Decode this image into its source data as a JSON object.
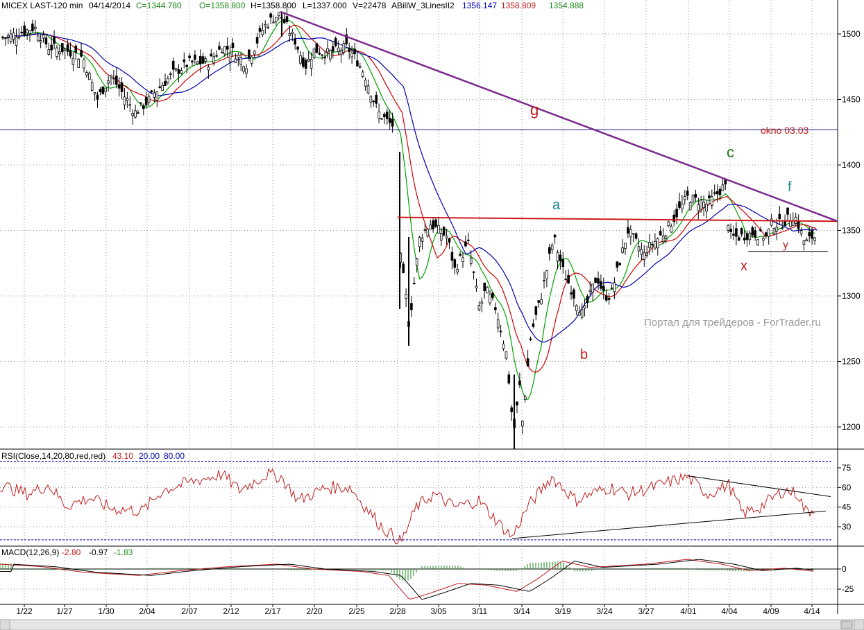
{
  "header": {
    "symbol": "MICEX LAST-120 min",
    "date": "04/14/2014",
    "close": "C=1344.780",
    "open": "O=1358.800",
    "high": "H=1358.800",
    "low": "L=1337.000",
    "volume": "V=22478",
    "indicator_name": "ABillW_3LinesII2",
    "line1_value": "1356.147",
    "line2_value": "1358.809",
    "line3_value": "1354.888"
  },
  "rsi_panel": {
    "title": "RSI(Close,14,20,80,red,red)",
    "value": "43.10",
    "low_level": "20.00",
    "high_level": "80.00"
  },
  "macd_panel": {
    "title": "MACD(12,26,9)",
    "macd": "-2.80",
    "signal": "-0.97",
    "hist": "-1.83"
  },
  "annotations": {
    "wave_g": "g",
    "wave_c": "c",
    "wave_a": "a",
    "wave_b": "b",
    "wave_f": "f",
    "wave_x": "x",
    "wave_y": "y",
    "window_label": "okno 03.03",
    "watermark": "Портал для трейдеров - ForTrader.ru"
  },
  "colors": {
    "candles": "#000000",
    "fast_ma": "#00a000",
    "mid_ma": "#d00000",
    "slow_ma": "#0000b0",
    "trendline": "#7b2a8c",
    "horizontal_red": "#cc1a1a",
    "window_line": "#2a2aa0",
    "rsi_line": "#c02020",
    "annotation_red": "#c01a1a",
    "annotation_green": "#1a7a1a",
    "annotation_teal": "#1a8a8a"
  },
  "chart_data": [
    {
      "type": "candlestick",
      "title": "MICEX LAST-120 min",
      "x_tick_labels": [
        "1/22",
        "1/27",
        "1/30",
        "2/04",
        "2/07",
        "2/12",
        "2/17",
        "2/20",
        "2/25",
        "2/28",
        "3/05",
        "3/11",
        "3/14",
        "3/19",
        "3/24",
        "3/27",
        "4/01",
        "4/04",
        "4/09",
        "4/14"
      ],
      "y_tick_labels": [
        "1500",
        "1450",
        "1400",
        "1350",
        "1300",
        "1250",
        "1200"
      ],
      "ylim": [
        1175,
        1530
      ],
      "grid": true,
      "close_path": [
        {
          "x": "1/22",
          "y": 1502
        },
        {
          "x": "1/27",
          "y": 1488
        },
        {
          "x": "1/30",
          "y": 1462
        },
        {
          "x": "2/04",
          "y": 1448
        },
        {
          "x": "2/07",
          "y": 1478
        },
        {
          "x": "2/12",
          "y": 1488
        },
        {
          "x": "2/17",
          "y": 1512
        },
        {
          "x": "2/20",
          "y": 1488
        },
        {
          "x": "2/25",
          "y": 1480
        },
        {
          "x": "2/28",
          "y": 1435
        },
        {
          "x": "3/05",
          "y": 1350
        },
        {
          "x": "3/11",
          "y": 1290
        },
        {
          "x": "3/14",
          "y": 1200
        },
        {
          "x": "3/19",
          "y": 1320
        },
        {
          "x": "3/24",
          "y": 1300
        },
        {
          "x": "3/27",
          "y": 1335
        },
        {
          "x": "4/01",
          "y": 1375
        },
        {
          "x": "4/04",
          "y": 1345
        },
        {
          "x": "4/09",
          "y": 1355
        },
        {
          "x": "4/14",
          "y": 1345
        }
      ],
      "extremes": {
        "high": 1517,
        "low": 1183
      },
      "levels": {
        "horizontal_red": 1360,
        "window_line": 1427,
        "y_wave_support": 1334
      }
    },
    {
      "type": "line",
      "title": "RSI(Close,14,20,80,red,red)",
      "y_tick_labels": [
        "75",
        "60",
        "45",
        "30"
      ],
      "ylim": [
        15,
        85
      ],
      "levels": [
        20,
        80
      ],
      "current": 43.1
    },
    {
      "type": "line",
      "title": "MACD(12,26,9)",
      "y_tick_labels": [
        "0",
        "-25"
      ],
      "current": {
        "macd": -2.8,
        "signal": -0.97,
        "hist": -1.83
      }
    }
  ]
}
